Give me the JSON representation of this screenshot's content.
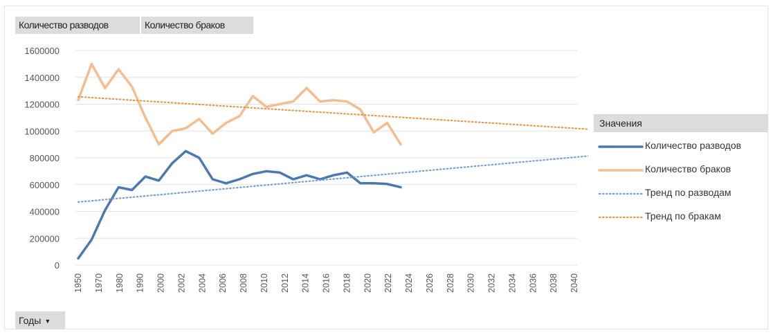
{
  "field_buttons": [
    "Количество разводов",
    "Количество браков"
  ],
  "filter_button": {
    "label": "Годы",
    "icon": "dropdown-arrow-icon"
  },
  "legend": {
    "title": "Значения",
    "items": [
      {
        "label": "Количество разводов",
        "color": "#4a79b0",
        "style": "solid"
      },
      {
        "label": "Количество браков",
        "color": "#f3bd8f",
        "style": "solid"
      },
      {
        "label": "Тренд по разводам",
        "color": "#7a9fd0",
        "style": "dotted"
      },
      {
        "label": "Тренд по бракам",
        "color": "#e8984d",
        "style": "dotted"
      }
    ]
  },
  "chart_data": {
    "type": "line",
    "categories": [
      "1950",
      "1970",
      "1980",
      "1990",
      "2000",
      "2002",
      "2004",
      "2006",
      "2008",
      "2010",
      "2012",
      "2014",
      "2016",
      "2018",
      "2020",
      "2022",
      "2024",
      "2026",
      "2028",
      "2030",
      "2032",
      "2034",
      "2036",
      "2038",
      "2040"
    ],
    "ylim": [
      0,
      1600000
    ],
    "yticks": [
      0,
      200000,
      400000,
      600000,
      800000,
      1000000,
      1200000,
      1400000,
      1600000
    ],
    "ytick_labels": [
      "0",
      "200000",
      "400000",
      "600000",
      "800000",
      "1000000",
      "1200000",
      "1400000",
      "1600000"
    ],
    "grid": true,
    "legend_position": "right",
    "series": [
      {
        "name": "Количество разводов",
        "color": "#4a79b0",
        "style": "solid",
        "points": [
          [
            0,
            50000
          ],
          [
            0.65,
            190000
          ],
          [
            1.3,
            410000
          ],
          [
            1.95,
            580000
          ],
          [
            2.6,
            560000
          ],
          [
            3.25,
            660000
          ],
          [
            3.9,
            630000
          ],
          [
            4.55,
            760000
          ],
          [
            5.2,
            850000
          ],
          [
            5.85,
            800000
          ],
          [
            6.5,
            640000
          ],
          [
            7.15,
            610000
          ],
          [
            7.8,
            640000
          ],
          [
            8.45,
            680000
          ],
          [
            9.1,
            700000
          ],
          [
            9.75,
            690000
          ],
          [
            10.4,
            640000
          ],
          [
            11.05,
            670000
          ],
          [
            11.7,
            640000
          ],
          [
            12.35,
            670000
          ],
          [
            13,
            690000
          ],
          [
            13.65,
            610000
          ],
          [
            14.3,
            610000
          ],
          [
            14.95,
            605000
          ],
          [
            15.6,
            580000
          ]
        ]
      },
      {
        "name": "Количество браков",
        "color": "#f3bd8f",
        "style": "solid",
        "points": [
          [
            0,
            1230000
          ],
          [
            0.65,
            1500000
          ],
          [
            1.3,
            1320000
          ],
          [
            1.95,
            1460000
          ],
          [
            2.6,
            1330000
          ],
          [
            3.25,
            1100000
          ],
          [
            3.9,
            900000
          ],
          [
            4.55,
            1000000
          ],
          [
            5.2,
            1020000
          ],
          [
            5.85,
            1090000
          ],
          [
            6.5,
            980000
          ],
          [
            7.15,
            1060000
          ],
          [
            7.8,
            1110000
          ],
          [
            8.45,
            1260000
          ],
          [
            9.1,
            1180000
          ],
          [
            9.75,
            1200000
          ],
          [
            10.4,
            1220000
          ],
          [
            11.05,
            1320000
          ],
          [
            11.7,
            1220000
          ],
          [
            12.35,
            1230000
          ],
          [
            13,
            1220000
          ],
          [
            13.65,
            1160000
          ],
          [
            14.3,
            990000
          ],
          [
            14.95,
            1060000
          ],
          [
            15.6,
            900000
          ]
        ]
      },
      {
        "name": "Тренд по разводам",
        "color": "#7a9fd0",
        "style": "dotted",
        "points": [
          [
            0,
            470000
          ],
          [
            35.2,
            960000
          ]
        ]
      },
      {
        "name": "Тренд по бракам",
        "color": "#e8984d",
        "style": "dotted",
        "points": [
          [
            0,
            1255000
          ],
          [
            35.2,
            910000
          ]
        ]
      }
    ]
  }
}
